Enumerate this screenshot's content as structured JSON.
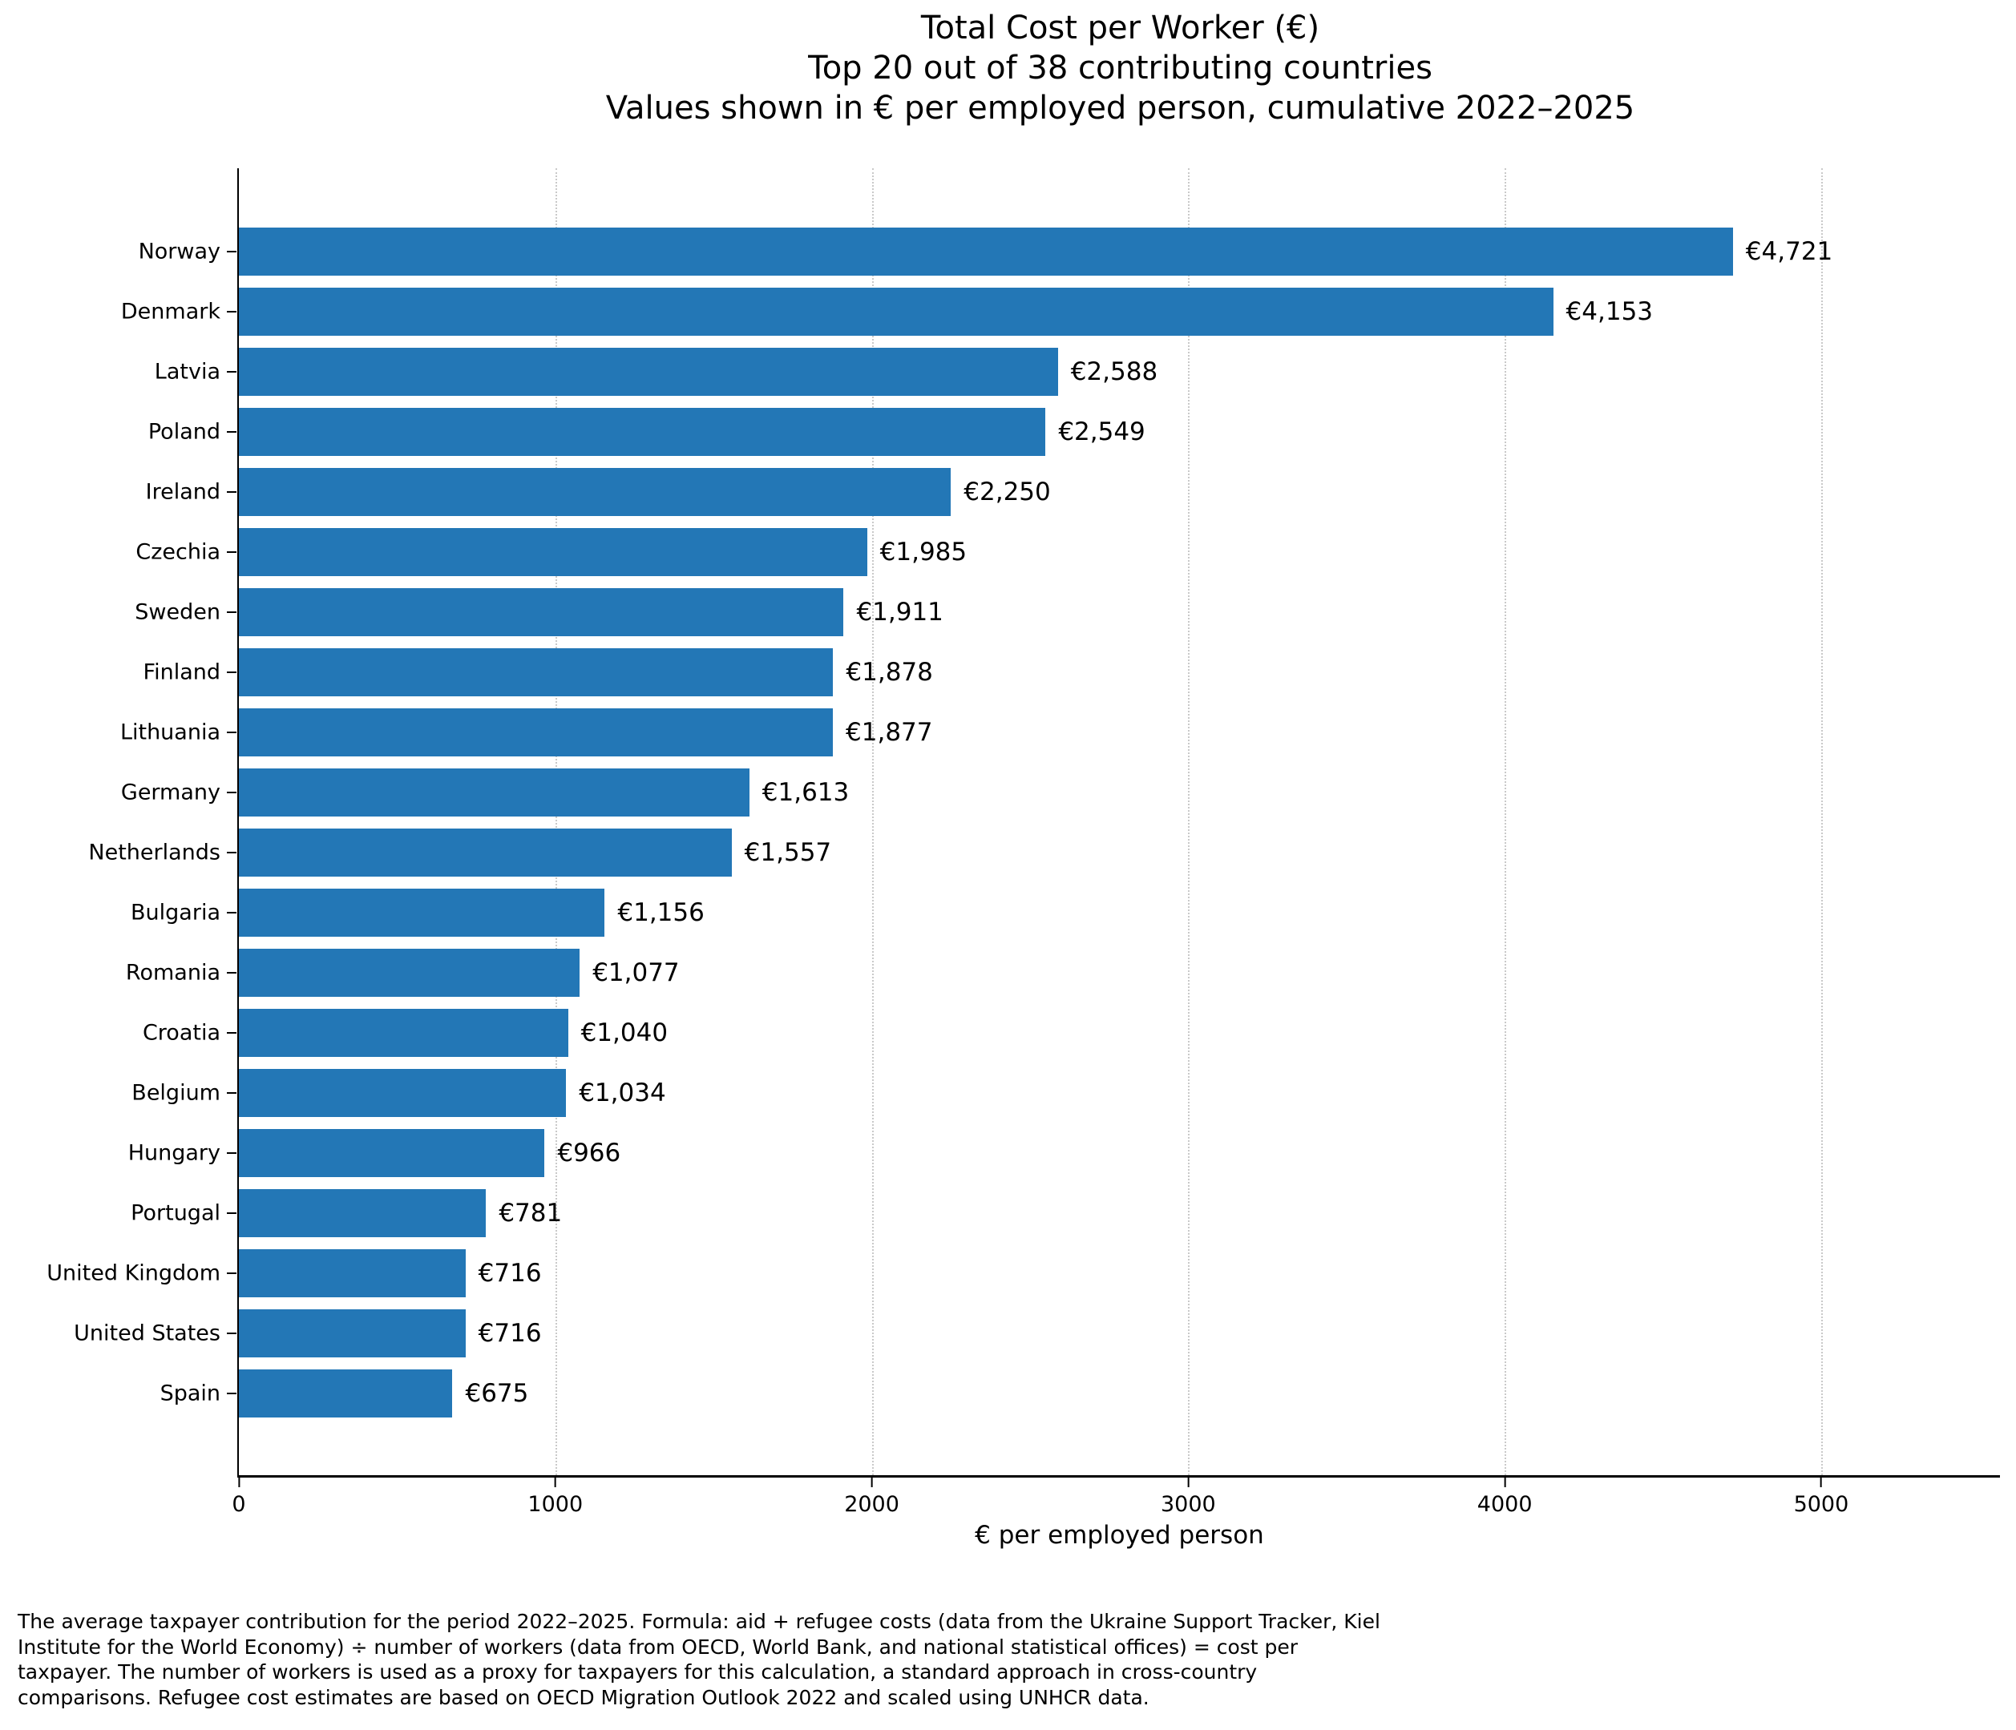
{
  "chart_data": {
    "type": "bar",
    "orientation": "horizontal",
    "title_lines": [
      "Total Cost per Worker (€)",
      "Top 20 out of 38 contributing countries",
      "Values shown in € per employed person, cumulative 2022–2025"
    ],
    "xlabel": "€ per employed person",
    "xlim": [
      0,
      5565
    ],
    "xticks": [
      0,
      1000,
      2000,
      3000,
      4000,
      5000
    ],
    "grid": "vertical dotted gridlines at x ticks",
    "legend": "none",
    "bar_color": "#2377b6",
    "categories": [
      "Norway",
      "Denmark",
      "Latvia",
      "Poland",
      "Ireland",
      "Czechia",
      "Sweden",
      "Finland",
      "Lithuania",
      "Germany",
      "Netherlands",
      "Bulgaria",
      "Romania",
      "Croatia",
      "Belgium",
      "Hungary",
      "Portugal",
      "United Kingdom",
      "United States",
      "Spain"
    ],
    "values": [
      4721,
      4153,
      2588,
      2549,
      2250,
      1985,
      1911,
      1878,
      1877,
      1613,
      1557,
      1156,
      1077,
      1040,
      1034,
      966,
      781,
      716,
      716,
      675
    ],
    "value_labels": [
      "€4,721",
      "€4,153",
      "€2,588",
      "€2,549",
      "€2,250",
      "€1,985",
      "€1,911",
      "€1,878",
      "€1,877",
      "€1,613",
      "€1,557",
      "€1,156",
      "€1,077",
      "€1,040",
      "€1,034",
      "€966",
      "€781",
      "€716",
      "€716",
      "€675"
    ]
  },
  "footnote": {
    "lines": [
      "The average taxpayer contribution for the period 2022–2025. Formula: aid + refugee costs (data from the Ukraine Support Tracker, Kiel",
      "Institute for the World Economy) ÷ number of workers (data from OECD, World Bank, and national statistical offices) = cost per",
      "taxpayer. The number of workers is used as a proxy for taxpayers for this calculation, a standard approach in cross-country",
      "comparisons. Refugee cost estimates are based on OECD Migration Outlook 2022 and scaled using UNHCR data."
    ]
  }
}
